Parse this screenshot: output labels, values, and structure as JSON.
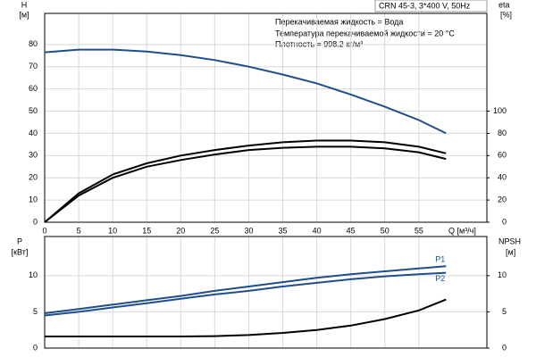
{
  "chart_data": [
    {
      "type": "line",
      "subtitle": "CRN 45-3, 3*400 V, 50Hz",
      "annotations": [
        "Перекачиваемая жидкость = Вода",
        "Температура перекачиваемой жидкости = 20 °C",
        "Плотность = 998.2 кг/м³"
      ],
      "y_label": "H",
      "y_unit": "[м]",
      "y2_label": "eta",
      "y2_unit": "[%]",
      "x_label": "Q [м³/ч]",
      "x": [
        0,
        5,
        10,
        15,
        20,
        25,
        30,
        35,
        40,
        45,
        50,
        55,
        59
      ],
      "series": [
        {
          "color": "#1f4e8c",
          "values": [
            76.5,
            77.7,
            77.7,
            76.8,
            75.2,
            73,
            70,
            66.5,
            62.5,
            57.5,
            52,
            46,
            40
          ]
        },
        {
          "color": "#000000",
          "axis": "y2",
          "values": [
            0,
            26,
            43,
            53,
            60,
            65,
            69,
            72,
            73.5,
            73.5,
            72,
            68,
            62
          ]
        },
        {
          "color": "#000000",
          "axis": "y2",
          "values": [
            0,
            24,
            40,
            50,
            56,
            61,
            65,
            67,
            68,
            68,
            66.5,
            63,
            57
          ]
        }
      ],
      "xlim": [
        0,
        65
      ],
      "xticks": [
        0,
        5,
        10,
        15,
        20,
        25,
        30,
        35,
        40,
        45,
        50,
        55
      ],
      "ylim": [
        0,
        94
      ],
      "yticks": [
        0,
        10,
        20,
        30,
        40,
        50,
        60,
        70,
        80
      ],
      "y2lim": [
        0,
        188
      ],
      "y2ticks": [
        0,
        20,
        40,
        60,
        80,
        100
      ],
      "grid": true
    },
    {
      "type": "line",
      "y_label": "P",
      "y_unit": "[кВт]",
      "y2_label": "NPSH",
      "y2_unit": "[м]",
      "x": [
        0,
        5,
        10,
        15,
        20,
        25,
        30,
        35,
        40,
        45,
        50,
        55,
        59
      ],
      "series": [
        {
          "name": "P1",
          "color": "#1f4e8c",
          "values": [
            4.8,
            5.4,
            6.0,
            6.6,
            7.2,
            7.9,
            8.5,
            9.1,
            9.7,
            10.2,
            10.6,
            11.0,
            11.3
          ]
        },
        {
          "name": "P2",
          "color": "#1f4e8c",
          "values": [
            4.5,
            5.0,
            5.6,
            6.2,
            6.8,
            7.4,
            7.9,
            8.5,
            9.0,
            9.5,
            9.9,
            10.2,
            10.4
          ]
        },
        {
          "color": "#000000",
          "axis": "y2",
          "values": [
            1.6,
            1.6,
            1.6,
            1.6,
            1.6,
            1.65,
            1.8,
            2.1,
            2.5,
            3.1,
            4.0,
            5.2,
            6.7
          ]
        }
      ],
      "xlim": [
        0,
        65
      ],
      "xticks": [
        0,
        5,
        10,
        15,
        20,
        25,
        30,
        35,
        40,
        45,
        50,
        55
      ],
      "ylim": [
        0,
        15.4
      ],
      "yticks": [
        0,
        5,
        10
      ],
      "y2lim": [
        0,
        15.4
      ],
      "y2ticks": [
        0,
        5,
        10
      ],
      "grid": true
    }
  ]
}
